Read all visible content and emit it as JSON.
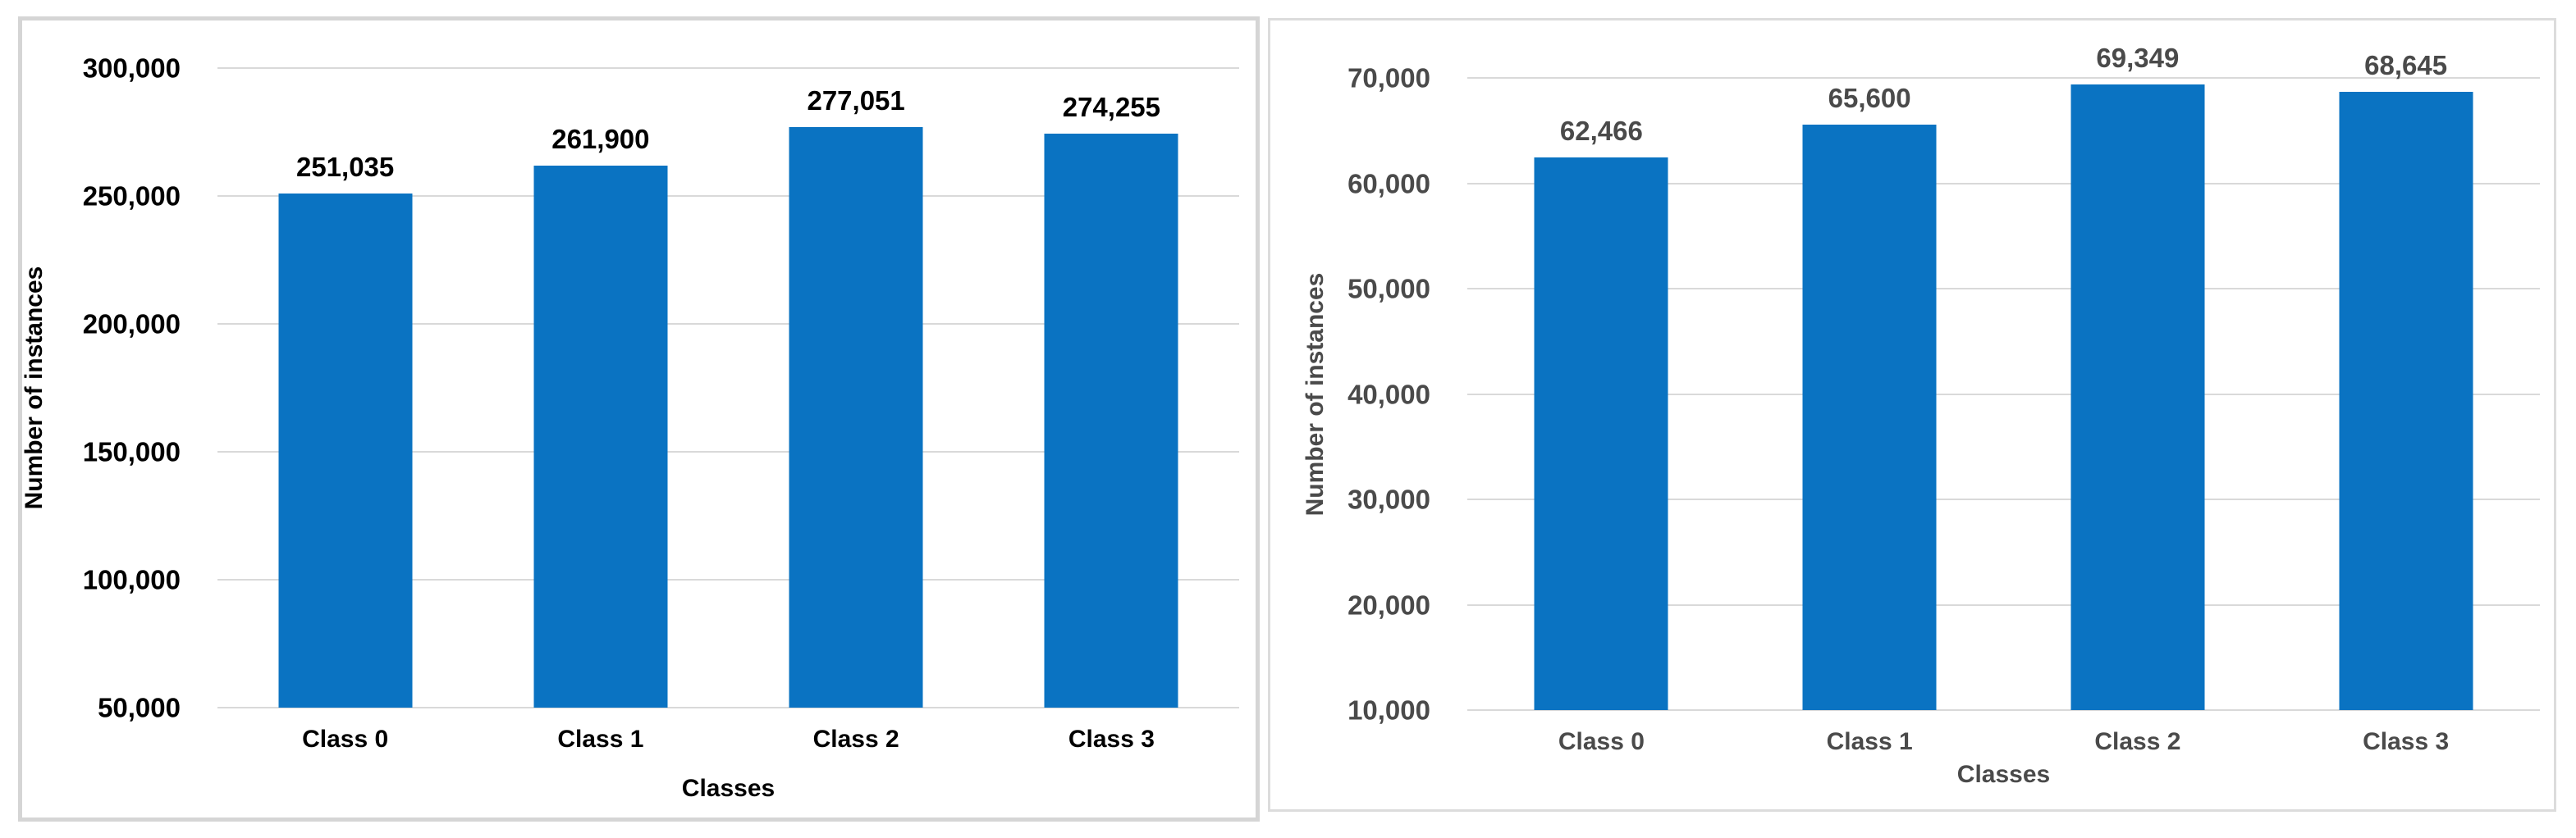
{
  "chart_data": [
    {
      "type": "bar",
      "title": "",
      "xlabel": "Classes",
      "ylabel": "Number of instances",
      "categories": [
        "Class 0",
        "Class 1",
        "Class 2",
        "Class 3"
      ],
      "values": [
        251035,
        261900,
        277051,
        274255
      ],
      "value_labels": [
        "251,035",
        "261,900",
        "277,051",
        "274,255"
      ],
      "tick_labels": [
        "50,000",
        "100,000",
        "150,000",
        "200,000",
        "250,000",
        "300,000"
      ],
      "ylim": [
        50000,
        300000
      ],
      "ystep": 50000,
      "grid": true,
      "legend": "none",
      "bar_color": "#0a73c2",
      "text_color": "#000000",
      "grid_color": "#d9d9d9",
      "frame_color": "#d5d5d5"
    },
    {
      "type": "bar",
      "title": "",
      "xlabel": "Classes",
      "ylabel": "Number of instances",
      "categories": [
        "Class 0",
        "Class 1",
        "Class 2",
        "Class 3"
      ],
      "values": [
        62466,
        65600,
        69349,
        68645
      ],
      "value_labels": [
        "62,466",
        "65,600",
        "69,349",
        "68,645"
      ],
      "tick_labels": [
        "10,000",
        "20,000",
        "30,000",
        "40,000",
        "50,000",
        "60,000",
        "70,000"
      ],
      "ylim": [
        10000,
        70000
      ],
      "ystep": 10000,
      "grid": true,
      "legend": "none",
      "bar_color": "#0a73c2",
      "text_color": "#4a4a4a",
      "grid_color": "#d9d9d9",
      "frame_color": "#dcdcdc"
    }
  ]
}
